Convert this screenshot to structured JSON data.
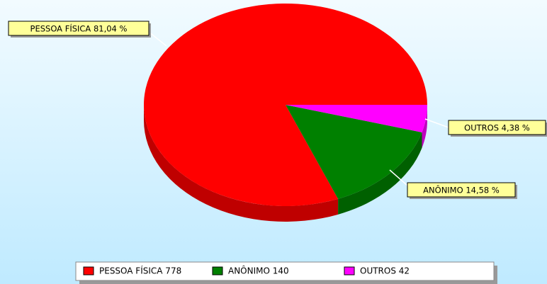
{
  "chart_data": {
    "type": "pie3d",
    "categories": [
      "PESSOA FÍSICA 778",
      "ANÔNIMO 140",
      "OUTROS 42"
    ],
    "values": [
      778,
      140,
      42
    ],
    "value_labels": [
      "PESSOA FÍSICA 81,04 %",
      "ANÔNIMO 14,58 %",
      "OUTROS 4,38 %"
    ],
    "colors": [
      "#ff0000",
      "#008000",
      "#ff00ff"
    ]
  }
}
